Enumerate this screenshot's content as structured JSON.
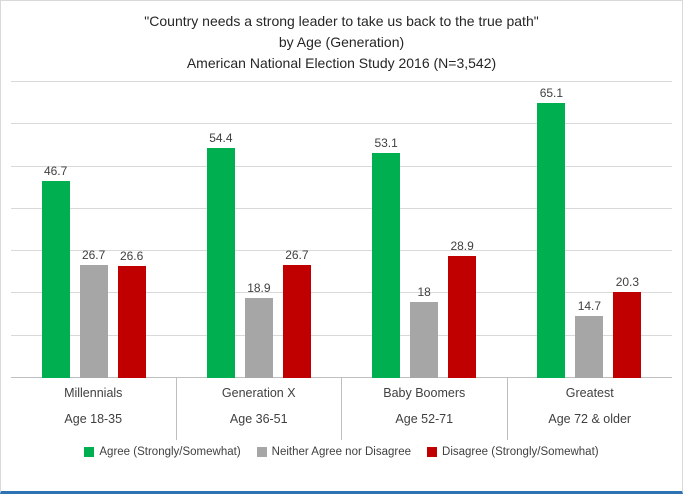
{
  "title_lines": [
    "\"Country needs a strong leader to take us back to the true path\"",
    "by Age (Generation)",
    "American National Election Study 2016 (N=3,542)"
  ],
  "chart_data": {
    "type": "bar",
    "categories": [
      "Millennials",
      "Generation X",
      "Baby Boomers",
      "Greatest"
    ],
    "category_sublabels": [
      "Age 18-35",
      "Age 36-51",
      "Age 52-71",
      "Age 72 & older"
    ],
    "series": [
      {
        "name": "Agree (Strongly/Somewhat)",
        "color": "#00B050",
        "values": [
          46.7,
          54.4,
          53.1,
          65.1
        ]
      },
      {
        "name": "Neither Agree nor Disagree",
        "color": "#A6A6A6",
        "values": [
          26.7,
          18.9,
          18,
          14.7
        ]
      },
      {
        "name": "Disagree (Strongly/Somewhat)",
        "color": "#C00000",
        "values": [
          26.6,
          26.7,
          28.9,
          20.3
        ]
      }
    ],
    "ylim": [
      0,
      70
    ],
    "gridline_step": 10,
    "grid": true,
    "legend_position": "bottom",
    "accent_bottom_border_color": "#2E74B5",
    "gridline_color": "#D9D9D9"
  }
}
